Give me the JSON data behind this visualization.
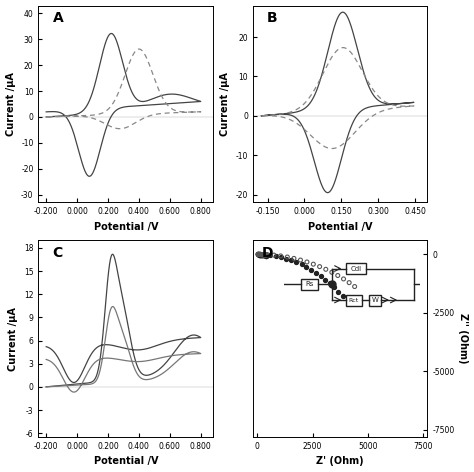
{
  "fig_width": 4.74,
  "fig_height": 4.72,
  "bg_color": "#ffffff",
  "panel_A": {
    "label": "A",
    "xlabel": "Potential /V",
    "ylabel": "Current /μA",
    "xlim": [
      -0.25,
      0.88
    ],
    "ylim": [
      -33,
      43
    ],
    "xticks": [
      -0.2,
      0.0,
      0.2,
      0.4,
      0.6,
      0.8
    ],
    "yticks": [
      -30,
      -20,
      -10,
      0,
      10,
      20,
      30,
      40
    ],
    "xtick_labels": [
      "-0.200",
      "0.000",
      "0.200",
      "0.400",
      "0.600",
      "0.800"
    ],
    "ytick_labels": [
      "-30",
      "-20",
      "-10",
      "0",
      "10",
      "20",
      "30",
      "40"
    ]
  },
  "panel_B": {
    "label": "B",
    "xlabel": "Potential /V",
    "ylabel": "Current /μA",
    "xlim": [
      -0.21,
      0.5
    ],
    "ylim": [
      -22,
      28
    ],
    "xticks": [
      -0.15,
      0.0,
      0.15,
      0.3,
      0.45
    ],
    "yticks": [
      -20,
      -10,
      0,
      10,
      20
    ],
    "xtick_labels": [
      "-0.150",
      "0.000",
      "0.150",
      "0.300",
      "0.450"
    ],
    "ytick_labels": [
      "-20",
      "-10",
      "0",
      "10",
      "20"
    ]
  },
  "panel_C": {
    "label": "C",
    "xlabel": "Potential /V",
    "ylabel": "Current /μA",
    "xlim": [
      -0.25,
      0.88
    ],
    "ylim": [
      -6.5,
      19
    ],
    "xticks": [
      -0.2,
      0.0,
      0.2,
      0.4,
      0.6,
      0.8
    ],
    "yticks": [
      -6,
      -3,
      0,
      3,
      6,
      9,
      12,
      15,
      18
    ],
    "xtick_labels": [
      "-0.200",
      "0.000",
      "0.200",
      "0.400",
      "0.600",
      "0.800"
    ],
    "ytick_labels": [
      "-6",
      "-3",
      "0",
      "3",
      "6",
      "9",
      "12",
      "15",
      "18"
    ]
  },
  "panel_D": {
    "label": "D",
    "xlabel": "Z' (Ohm)",
    "ylabel": "Z'' (Ohm)",
    "xlim": [
      -200,
      7700
    ],
    "ylim": [
      -7800,
      600
    ],
    "xticks": [
      0,
      2500,
      5000,
      7500
    ],
    "yticks": [
      -7500,
      -5000,
      -2500,
      0
    ],
    "xtick_labels": [
      "0",
      "2500",
      "5000",
      "7500"
    ],
    "ytick_labels": [
      "-7500",
      "-5000",
      "-2500",
      "0"
    ]
  }
}
